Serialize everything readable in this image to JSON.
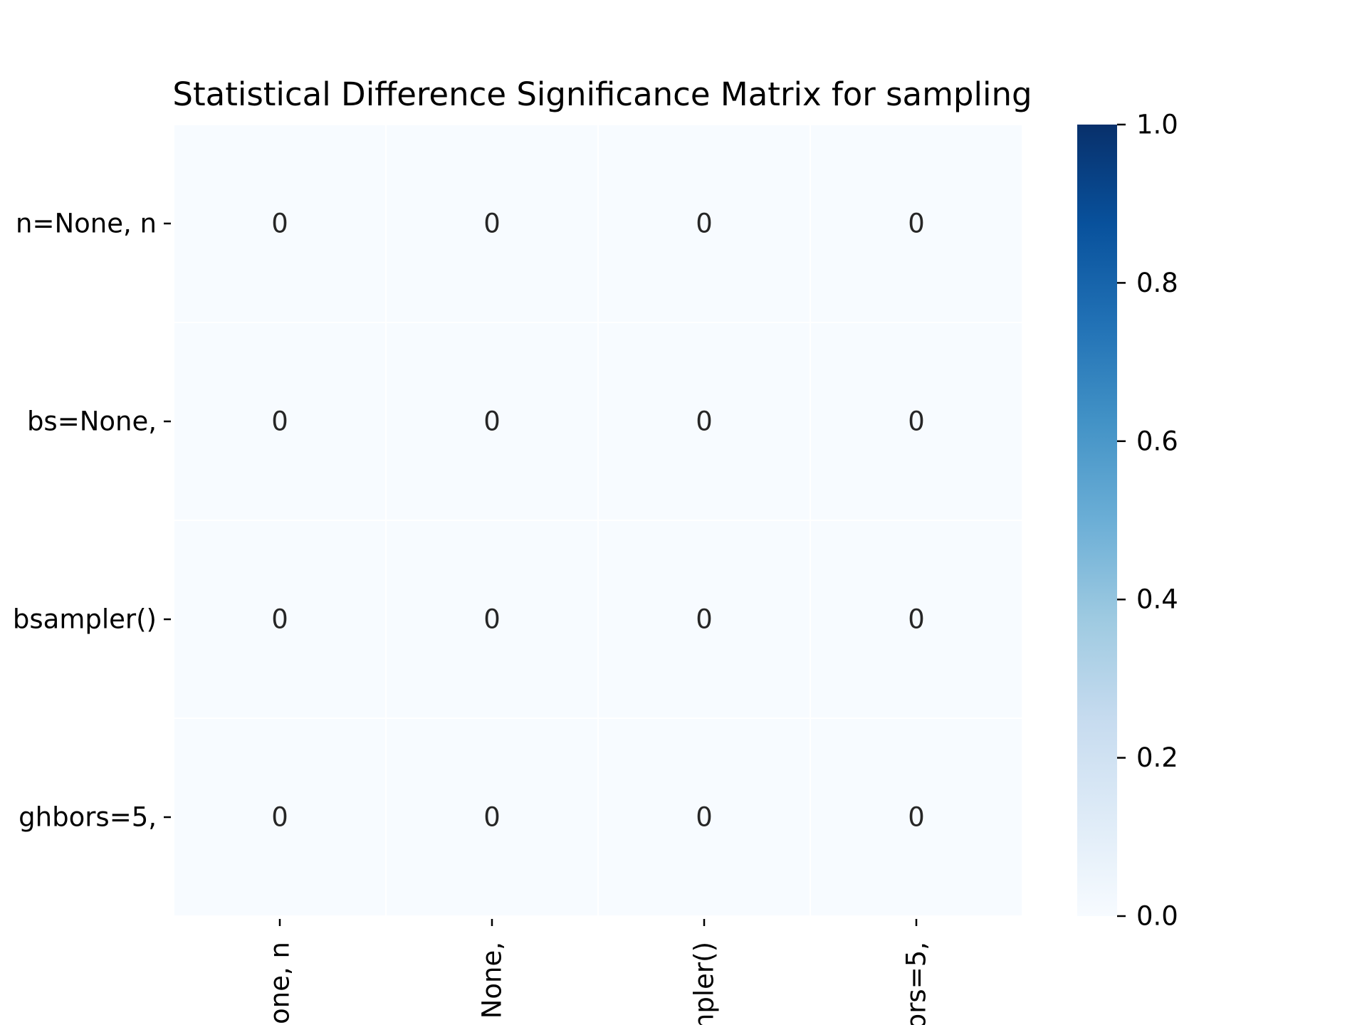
{
  "chart_data": {
    "type": "heatmap",
    "title": "Statistical Difference Significance Matrix for sampling",
    "xlabel": "",
    "ylabel": "",
    "row_labels": [
      "n=None, n",
      "bs=None, ",
      "bsampler()",
      "ghbors=5,"
    ],
    "col_labels": [
      "one, n",
      "None, ",
      "npler()",
      "ors=5,"
    ],
    "values": [
      [
        0,
        0,
        0,
        0
      ],
      [
        0,
        0,
        0,
        0
      ],
      [
        0,
        0,
        0,
        0
      ],
      [
        0,
        0,
        0,
        0
      ]
    ],
    "cell_labels": [
      [
        "0",
        "0",
        "0",
        "0"
      ],
      [
        "0",
        "0",
        "0",
        "0"
      ],
      [
        "0",
        "0",
        "0",
        "0"
      ],
      [
        "0",
        "0",
        "0",
        "0"
      ]
    ],
    "colormap": "Blues",
    "colormap_low": "#f7fbff",
    "colormap_high": "#08306b",
    "cell_border_color": "#ffffff",
    "colorbar": {
      "range": [
        0.0,
        1.0
      ],
      "ticks": [
        0.0,
        0.2,
        0.4,
        0.6,
        0.8,
        1.0
      ],
      "tick_labels": [
        "0.0",
        "0.2",
        "0.4",
        "0.6",
        "0.8",
        "1.0"
      ],
      "position": "right"
    }
  }
}
